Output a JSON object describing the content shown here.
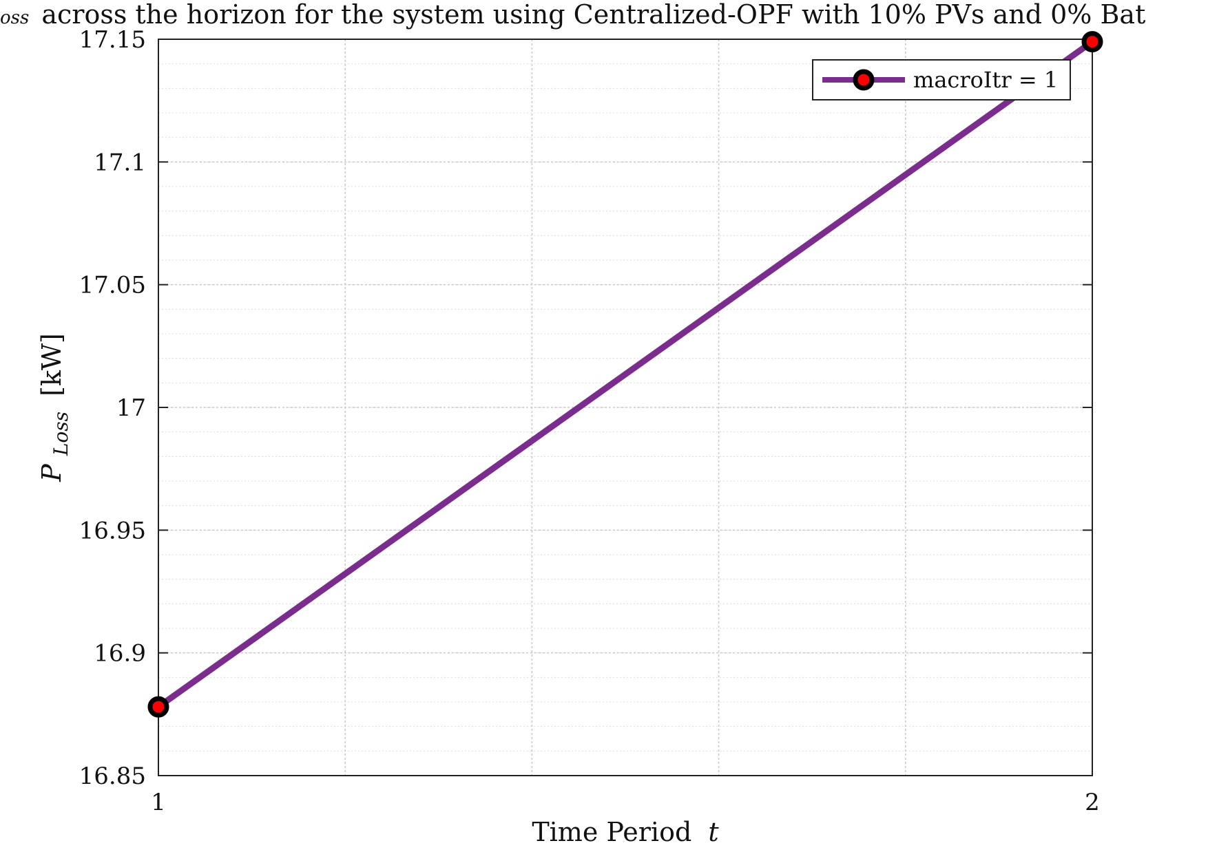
{
  "chart_data": {
    "type": "line",
    "title_prefix_sub": "oss",
    "title": "across the horizon for the system using Centralized-OPF with 10% PVs and 0% Bat",
    "xlabel": "Time Period",
    "xlabel_var": "t",
    "ylabel_main": "P",
    "ylabel_sub": "Loss",
    "ylabel_unit": "[kW]",
    "xlim": [
      1,
      2
    ],
    "ylim": [
      16.85,
      17.15
    ],
    "x_ticks": [
      1,
      2
    ],
    "x_tick_labels": [
      "1",
      "2"
    ],
    "y_ticks": [
      16.85,
      16.9,
      16.95,
      17,
      17.05,
      17.1,
      17.15
    ],
    "y_tick_labels": [
      "16.85",
      "16.9",
      "16.95",
      "17",
      "17.05",
      "17.1",
      "17.15"
    ],
    "x_minor_ticks": [
      1.2,
      1.4,
      1.6,
      1.8
    ],
    "y_minor_step": 0.01,
    "grid": true,
    "legend_position": "top-right",
    "series": [
      {
        "name": "macroItr = 1",
        "x": [
          1,
          2
        ],
        "y": [
          16.878,
          17.149
        ],
        "color": "#7b2d8e",
        "marker_edge_color": "#000000",
        "marker_face_color": "#ff0000"
      }
    ]
  }
}
